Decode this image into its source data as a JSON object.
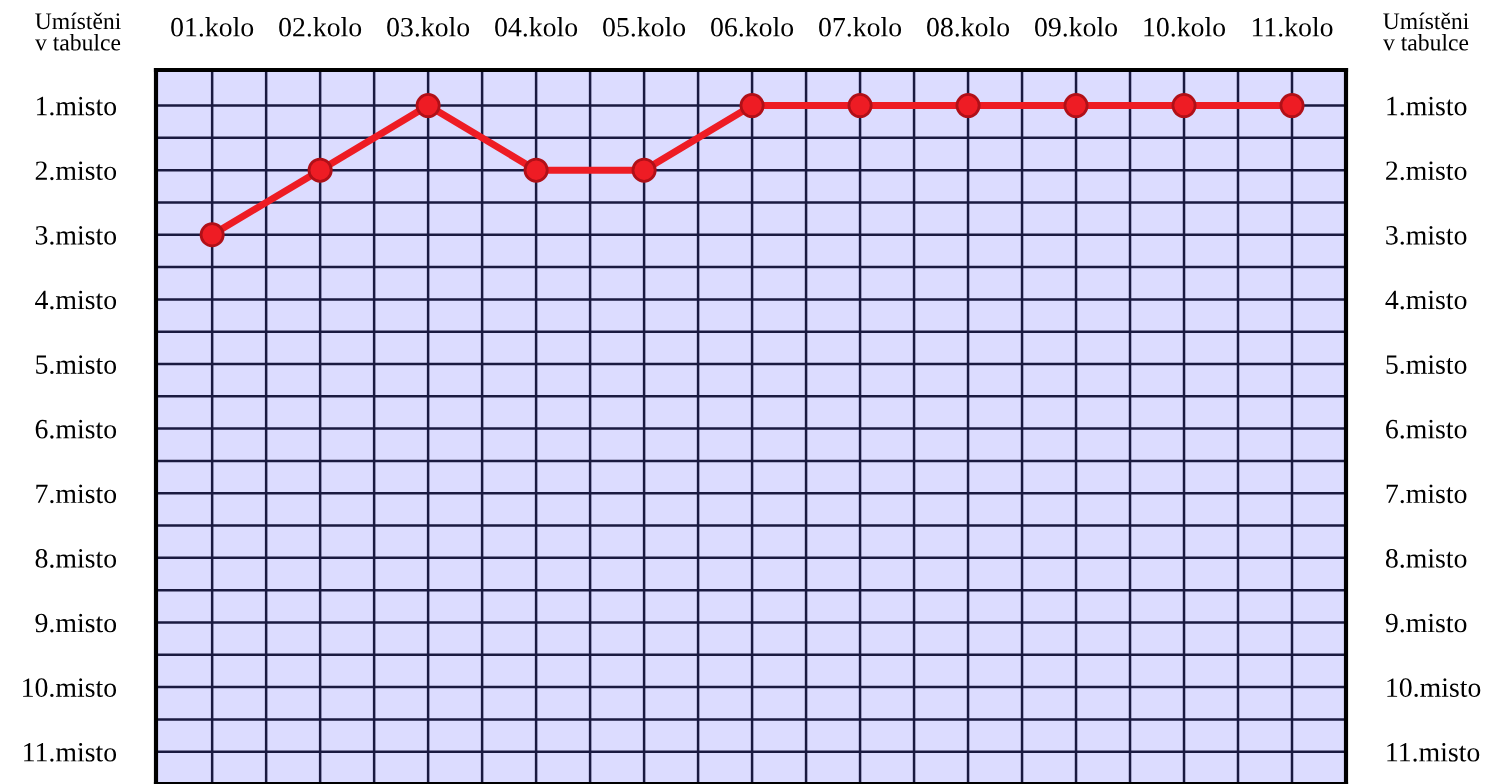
{
  "chart_data": {
    "type": "line",
    "categories": [
      "01.kolo",
      "02.kolo",
      "03.kolo",
      "04.kolo",
      "05.kolo",
      "06.kolo",
      "07.kolo",
      "08.kolo",
      "09.kolo",
      "10.kolo",
      "11.kolo"
    ],
    "series": [
      {
        "color": "#ee1c24",
        "values": [
          3,
          2,
          1,
          2,
          2,
          1,
          1,
          1,
          1,
          1,
          1
        ]
      }
    ],
    "ylabel": "Umístěni\nv tabulce",
    "y2label": "Umístěni\nv tabulce",
    "ylim": [
      11.5,
      0.45
    ],
    "y2lim": [
      11.5,
      0.45
    ],
    "yticks": [
      {
        "value": 1,
        "label": "1.misto"
      },
      {
        "value": 2,
        "label": "2.misto"
      },
      {
        "value": 3,
        "label": "3.misto"
      },
      {
        "value": 4,
        "label": "4.misto"
      },
      {
        "value": 5,
        "label": "5.misto"
      },
      {
        "value": 6,
        "label": "6.misto"
      },
      {
        "value": 7,
        "label": "7.misto"
      },
      {
        "value": 8,
        "label": "8.misto"
      },
      {
        "value": 9,
        "label": "9.misto"
      },
      {
        "value": 10,
        "label": "10.misto"
      },
      {
        "value": 11,
        "label": "11.misto"
      }
    ],
    "y2ticks": [
      {
        "value": 1,
        "label": "1.misto"
      },
      {
        "value": 2,
        "label": "2.misto"
      },
      {
        "value": 3,
        "label": "3.misto"
      },
      {
        "value": 4,
        "label": "4.misto"
      },
      {
        "value": 5,
        "label": "5.misto"
      },
      {
        "value": 6,
        "label": "6.misto"
      },
      {
        "value": 7,
        "label": "7.misto"
      },
      {
        "value": 8,
        "label": "8.misto"
      },
      {
        "value": 9,
        "label": "9.misto"
      },
      {
        "value": 10,
        "label": "10.misto"
      },
      {
        "value": 11,
        "label": "11.misto"
      }
    ],
    "grid": true,
    "marker": "circle",
    "line_style": "solid",
    "legend": false
  }
}
